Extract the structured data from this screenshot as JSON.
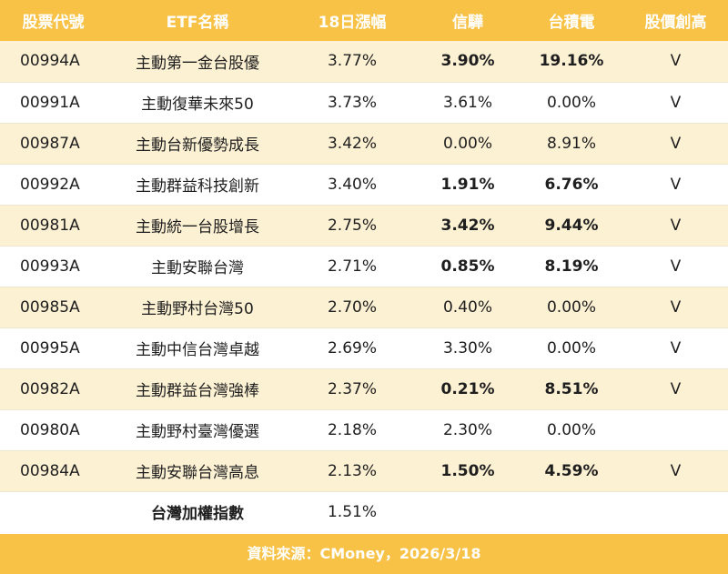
{
  "headers": [
    "股票代號",
    "ETF名稱",
    "18日漲幅",
    "信驊",
    "台積電",
    "股價創高"
  ],
  "rows": [
    {
      "code": "00994A",
      "name": "主動第一金台股優",
      "gain": "3.77%",
      "aspeed": "3.90%",
      "tsmc": "19.16%",
      "high": "V",
      "bold": true
    },
    {
      "code": "00991A",
      "name": "主動復華未來50",
      "gain": "3.73%",
      "aspeed": "3.61%",
      "tsmc": "0.00%",
      "high": "V",
      "bold": false
    },
    {
      "code": "00987A",
      "name": "主動台新優勢成長",
      "gain": "3.42%",
      "aspeed": "0.00%",
      "tsmc": "8.91%",
      "high": "V",
      "bold": false
    },
    {
      "code": "00992A",
      "name": "主動群益科技創新",
      "gain": "3.40%",
      "aspeed": "1.91%",
      "tsmc": "6.76%",
      "high": "V",
      "bold": true
    },
    {
      "code": "00981A",
      "name": "主動統一台股增長",
      "gain": "2.75%",
      "aspeed": "3.42%",
      "tsmc": "9.44%",
      "high": "V",
      "bold": true
    },
    {
      "code": "00993A",
      "name": "主動安聯台灣",
      "gain": "2.71%",
      "aspeed": "0.85%",
      "tsmc": "8.19%",
      "high": "V",
      "bold": true
    },
    {
      "code": "00985A",
      "name": "主動野村台灣50",
      "gain": "2.70%",
      "aspeed": "0.40%",
      "tsmc": "0.00%",
      "high": "V",
      "bold": false
    },
    {
      "code": "00995A",
      "name": "主動中信台灣卓越",
      "gain": "2.69%",
      "aspeed": "3.30%",
      "tsmc": "0.00%",
      "high": "V",
      "bold": false
    },
    {
      "code": "00982A",
      "name": "主動群益台灣強棒",
      "gain": "2.37%",
      "aspeed": "0.21%",
      "tsmc": "8.51%",
      "high": "V",
      "bold": true
    },
    {
      "code": "00980A",
      "name": "主動野村臺灣優選",
      "gain": "2.18%",
      "aspeed": "2.30%",
      "tsmc": "0.00%",
      "high": "",
      "bold": false
    },
    {
      "code": "00984A",
      "name": "主動安聯台灣高息",
      "gain": "2.13%",
      "aspeed": "1.50%",
      "tsmc": "4.59%",
      "high": "V",
      "bold": true
    }
  ],
  "index_row": {
    "name": "台灣加權指數",
    "gain": "1.51%"
  },
  "footer": "資料來源：CMoney，2026/3/18",
  "colors": {
    "header_bg": "#f7c245",
    "stripe": "#fdf1d4"
  }
}
